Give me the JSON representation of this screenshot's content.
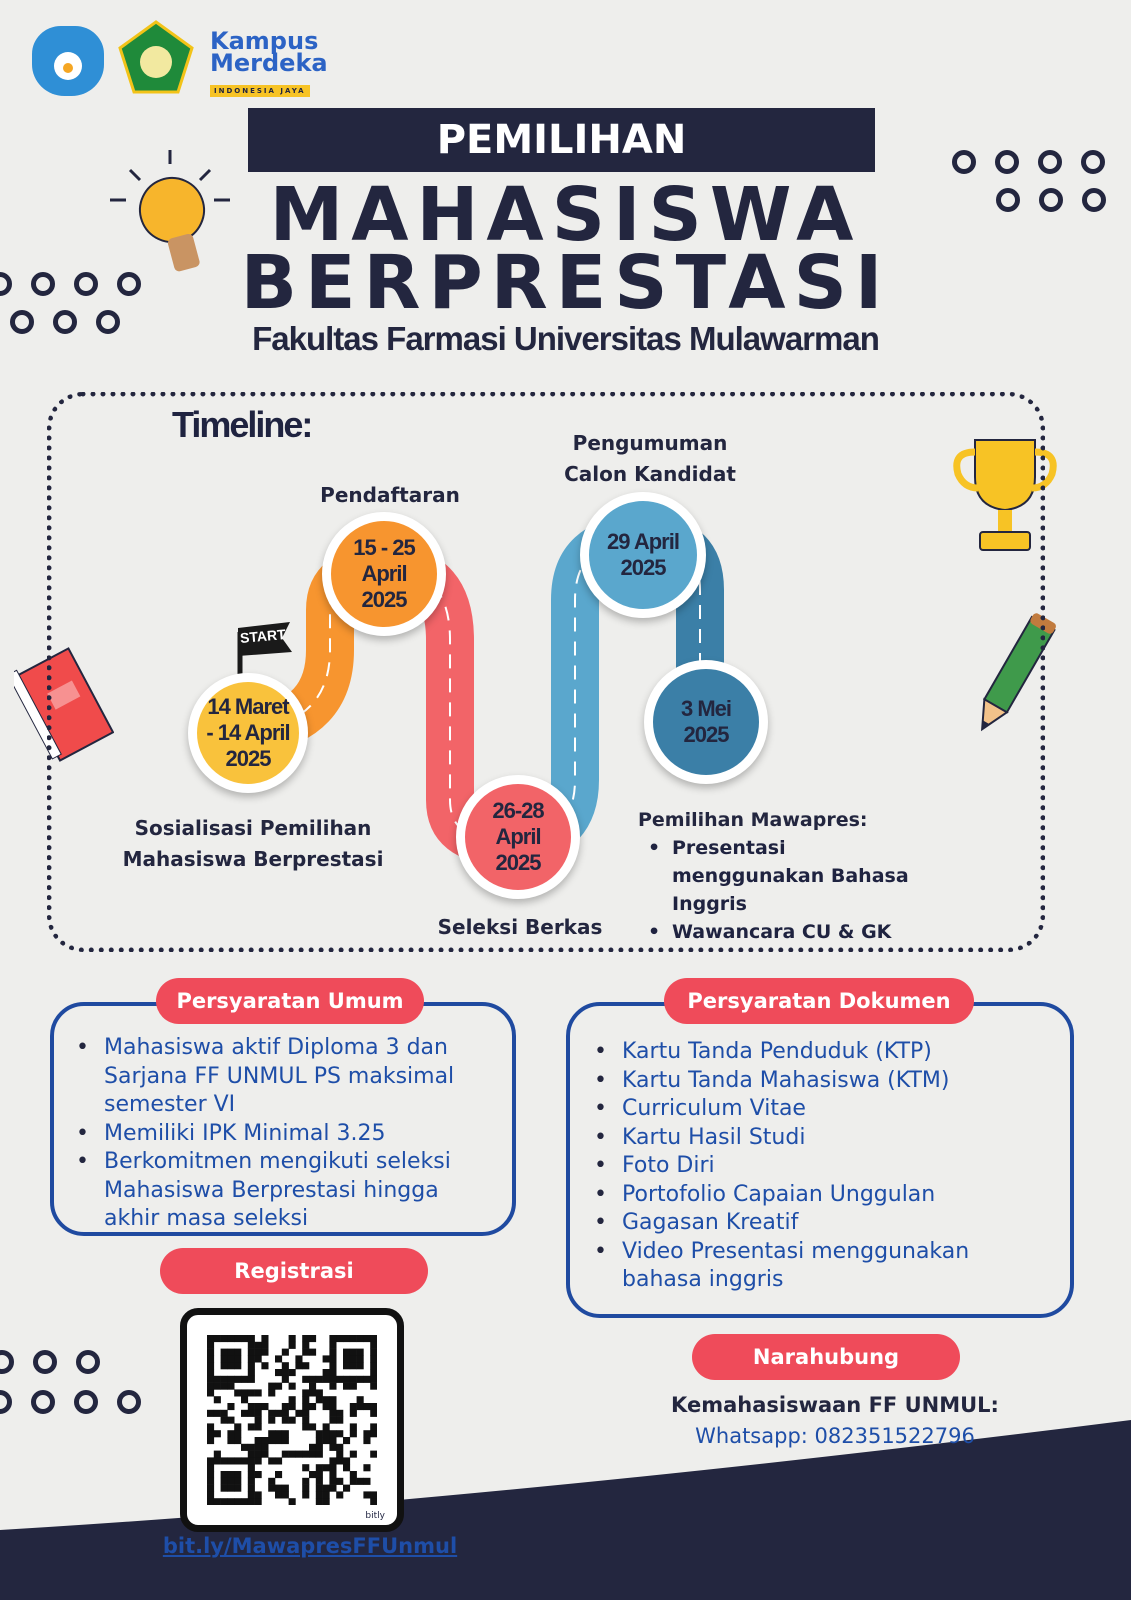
{
  "logos": {
    "tut_wuri": "Tut Wuri Handayani",
    "kampus_merdeka": "Kampus Merdeka",
    "kampus_merdeka_tag": "INDONESIA JAYA"
  },
  "header": {
    "banner": "PEMILIHAN",
    "title_line1": "MAHASISWA",
    "title_line2": "BERPRESTASI",
    "subtitle": "Fakultas Farmasi Universitas Mulawarman"
  },
  "timeline": {
    "title": "Timeline:",
    "start_flag": "START",
    "steps": [
      {
        "date": "14 Maret\n- 14 April\n2025",
        "label": "Sosialisasi Pemilihan Mahasiswa Berprestasi",
        "color": "#f9c23c"
      },
      {
        "date": "15 - 25\nApril\n2025",
        "label": "Pendaftaran",
        "color": "#f7952f"
      },
      {
        "date": "26-28\nApril\n2025",
        "label": "Seleksi Berkas",
        "color": "#f26468"
      },
      {
        "date": "29 April\n2025",
        "label": "Pengumuman Calon Kandidat",
        "color": "#5aa7cd"
      },
      {
        "date": "3 Mei\n2025",
        "label": "Pemilihan Mawapres:",
        "color": "#3b7fa7",
        "items": [
          "Presentasi menggunakan Bahasa Inggris",
          "Wawancara CU & GK"
        ]
      }
    ]
  },
  "persyaratan_umum": {
    "title": "Persyaratan Umum",
    "items": [
      "Mahasiswa aktif Diploma 3 dan Sarjana FF UNMUL PS maksimal semester VI",
      "Memiliki IPK Minimal 3.25",
      "Berkomitmen mengikuti seleksi Mahasiswa Berprestasi hingga akhir masa seleksi"
    ]
  },
  "persyaratan_dokumen": {
    "title": "Persyaratan Dokumen",
    "items": [
      "Kartu Tanda Penduduk (KTP)",
      "Kartu Tanda Mahasiswa (KTM)",
      "Curriculum Vitae",
      "Kartu Hasil Studi",
      "Foto Diri",
      "Portofolio Capaian Unggulan",
      "Gagasan Kreatif",
      "Video Presentasi menggunakan bahasa inggris"
    ]
  },
  "registrasi": {
    "title": "Registrasi",
    "qr_brand": "bitly",
    "link": "bit.ly/MawapresFFUnmul"
  },
  "narahubung": {
    "title": "Narahubung",
    "org": "Kemahasiswaan FF UNMUL:",
    "contact": "Whatsapp: 082351522796"
  },
  "colors": {
    "navy": "#23263f",
    "red": "#ef4b5a",
    "blue": "#1f4aa0"
  }
}
